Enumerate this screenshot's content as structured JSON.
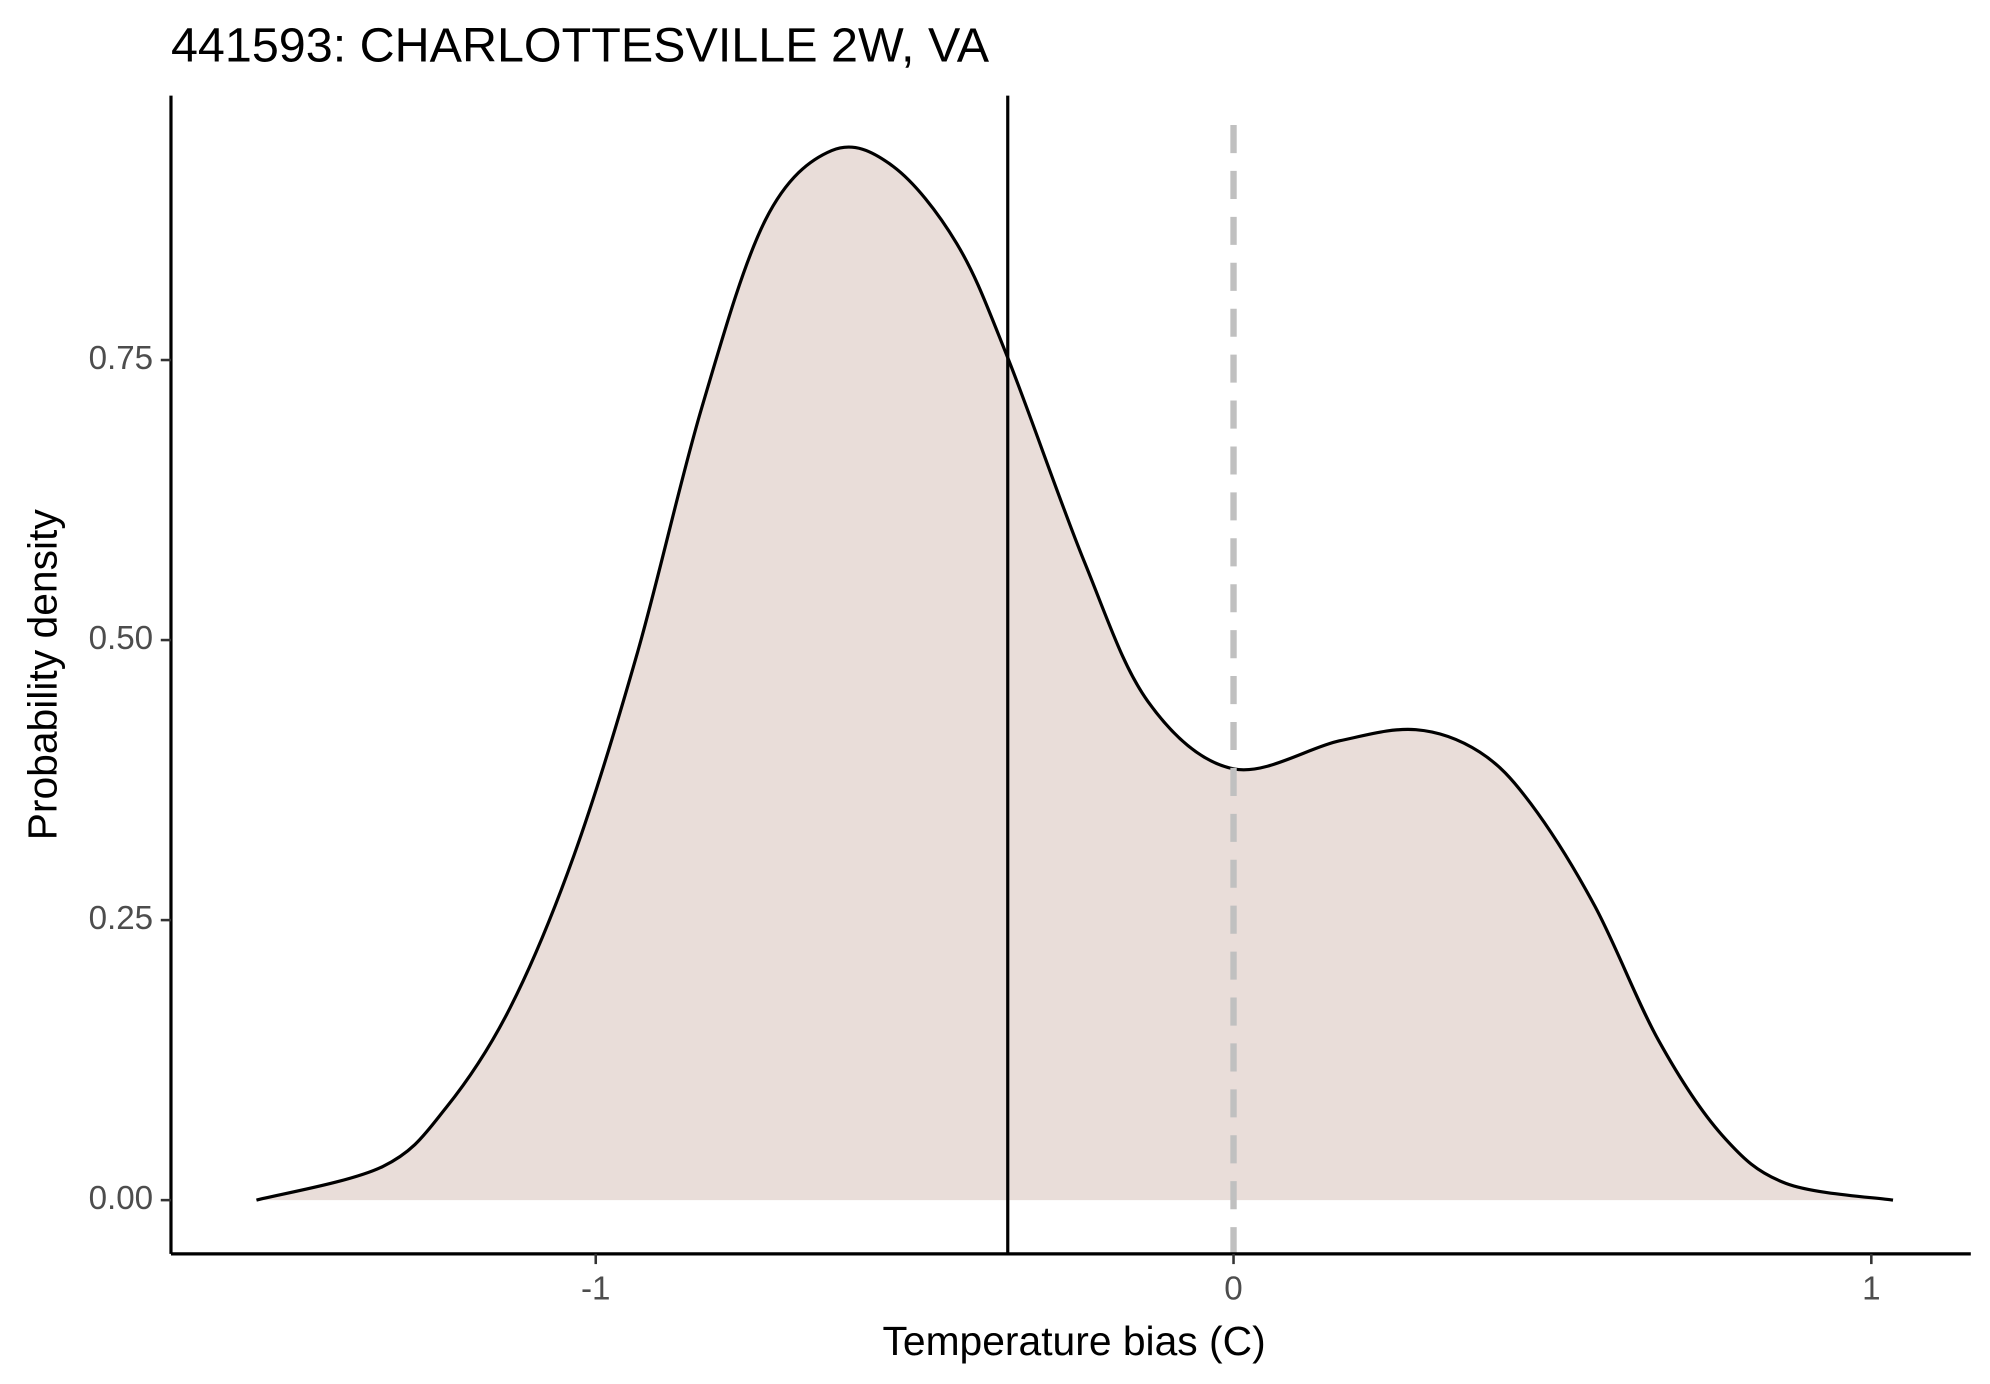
{
  "chart_data": {
    "type": "area",
    "title": "441593: CHARLOTTESVILLE 2W, VA",
    "x_label": "Temperature bias (C)",
    "y_label": "Probability density",
    "x": [
      -1.532,
      -1.334,
      -1.234,
      -1.134,
      -1.034,
      -0.934,
      -0.834,
      -0.734,
      -0.63,
      -0.534,
      -0.434,
      -0.354,
      -0.234,
      -0.134,
      0,
      0.166,
      0.286,
      0.386,
      0.466,
      0.566,
      0.666,
      0.766,
      0.866,
      1.034
    ],
    "values": [
      0.0,
      0.03,
      0.083,
      0.172,
      0.308,
      0.49,
      0.707,
      0.875,
      0.937,
      0.923,
      0.854,
      0.752,
      0.57,
      0.445,
      0.385,
      0.41,
      0.42,
      0.4,
      0.354,
      0.263,
      0.143,
      0.058,
      0.015,
      0.0
    ],
    "color": "#e9ddd9",
    "line_color": "#000000",
    "mean_line": -0.354,
    "reference_line": 0,
    "reference_color": "#c0c0c0",
    "xlim": [
      -1.666,
      1.156
    ],
    "ylim": [
      -0.048,
      0.986
    ],
    "xticks": [
      -1,
      0,
      1
    ],
    "yticks": [
      {
        "value": 0,
        "label": "0.00"
      },
      {
        "value": 0.25,
        "label": "0.25"
      },
      {
        "value": 0.5,
        "label": "0.50"
      },
      {
        "value": 0.75,
        "label": "0.75"
      }
    ],
    "grid": false
  }
}
